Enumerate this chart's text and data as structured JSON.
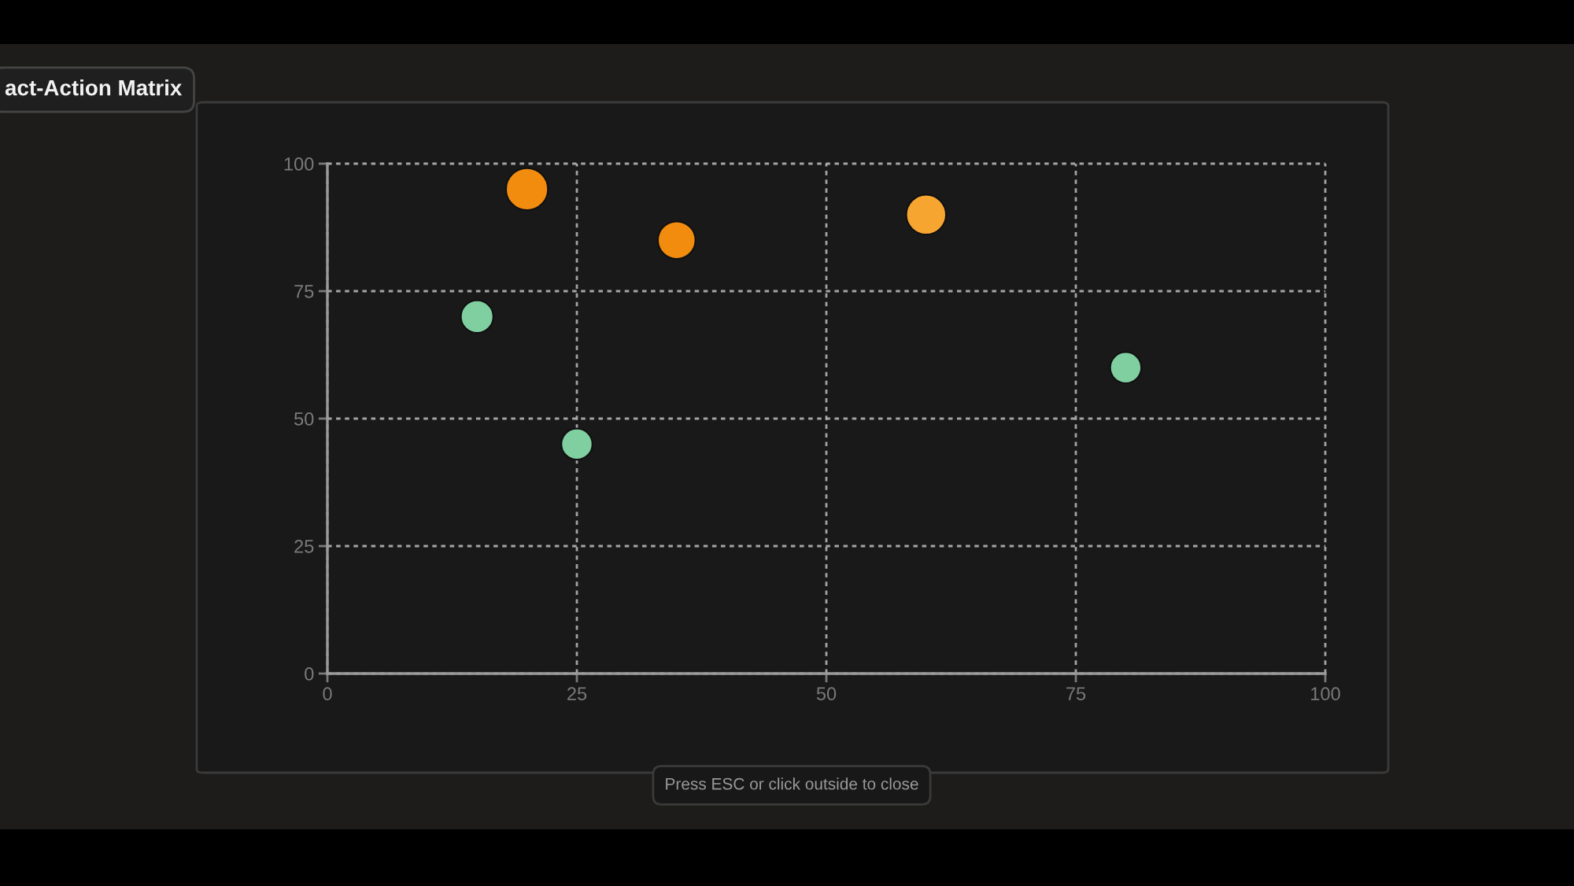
{
  "chart_data": {
    "type": "bubble",
    "title": "act-Action Matrix",
    "annotations": [
      "Press ESC or click outside to close"
    ],
    "x": [
      20,
      35,
      60,
      15,
      25,
      80
    ],
    "values": [
      95,
      85,
      90,
      70,
      45,
      60
    ],
    "sizes": [
      1,
      0.8,
      0.9,
      0.6,
      0.55,
      0.55
    ],
    "colors": [
      "#f28c0f",
      "#f28c0f",
      "#f7a531",
      "#80cfa0",
      "#80cfa0",
      "#80cfa0"
    ],
    "xlim": [
      0,
      100
    ],
    "ylim": [
      0,
      100
    ],
    "xticks": [
      0,
      25,
      50,
      75,
      100
    ],
    "yticks": [
      0,
      25,
      50,
      75,
      100
    ],
    "grid": true
  }
}
